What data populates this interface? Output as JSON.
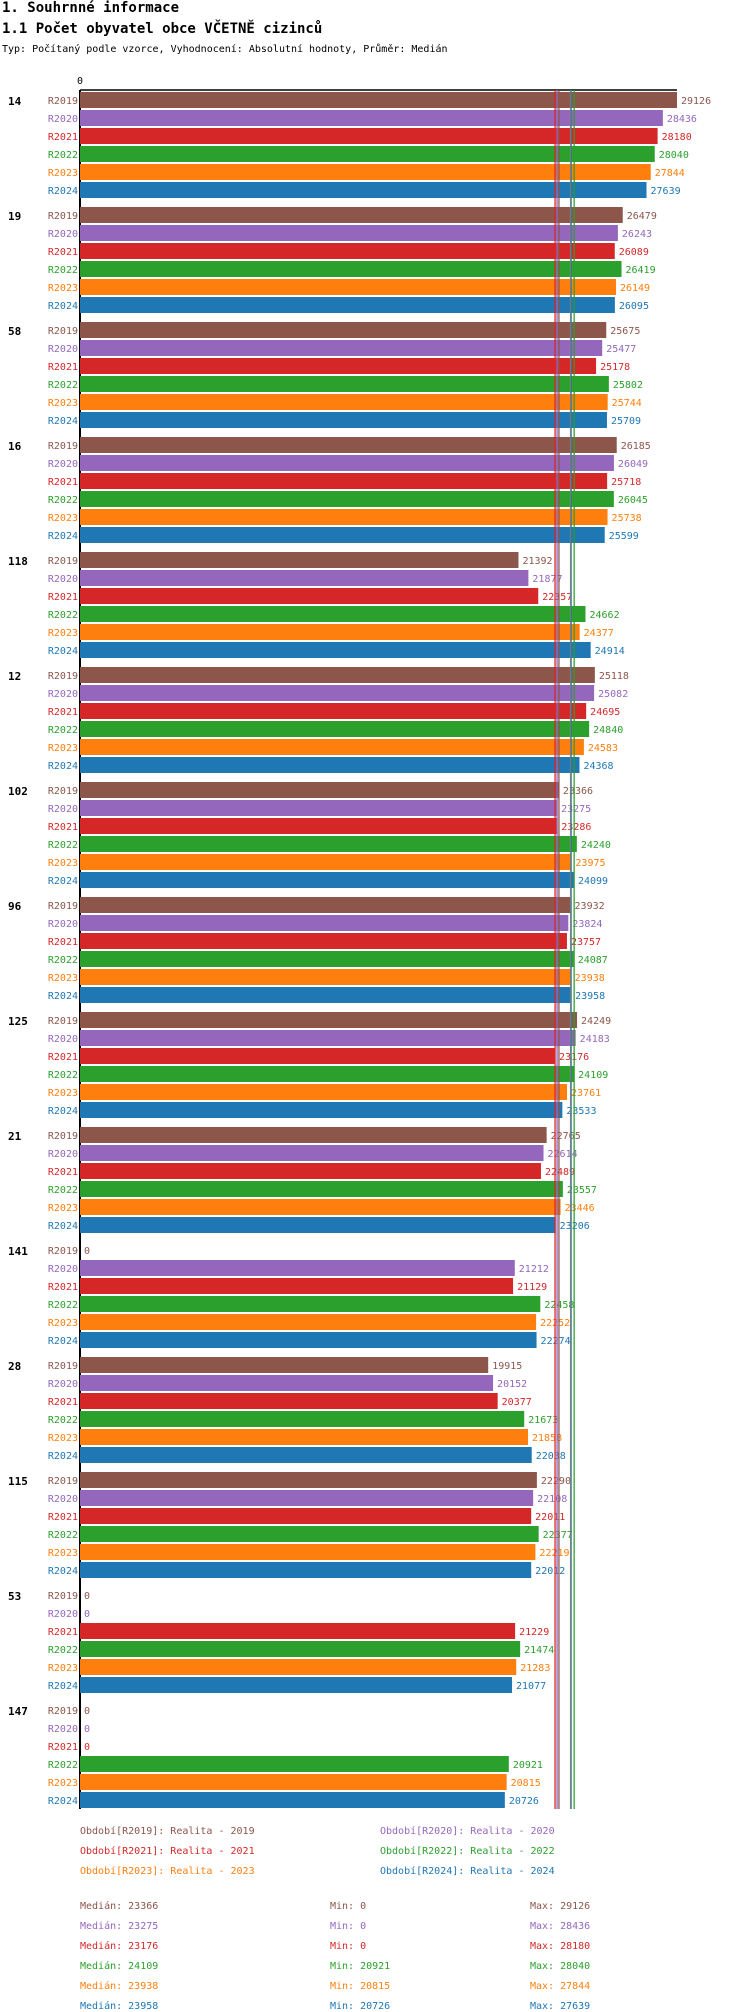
{
  "page": {
    "section_title": "1. Souhrnné informace",
    "chart_title": "1.1 Počet obyvatel obce VČETNĚ cizinců",
    "subtitle": "Typ: Počítaný podle vzorce, Vyhodnocení: Absolutní hodnoty, Průměr: Medián"
  },
  "colors": {
    "R2019": "#8c564b",
    "R2020": "#9467bd",
    "R2021": "#d62728",
    "R2022": "#2ca02c",
    "R2023": "#ff7f0e",
    "R2024": "#1f77b4"
  },
  "chart_data": {
    "type": "bar",
    "orientation": "horizontal",
    "title": "1.1 Počet obyvatel obce VČETNĚ cizinců",
    "x_axis_start_label": "0",
    "xlim": [
      0,
      29126
    ],
    "series_names": [
      "R2019",
      "R2020",
      "R2021",
      "R2022",
      "R2023",
      "R2024"
    ],
    "categories": [
      "14",
      "19",
      "58",
      "16",
      "118",
      "12",
      "102",
      "96",
      "125",
      "21",
      "141",
      "28",
      "115",
      "53",
      "147"
    ],
    "series": [
      {
        "name": "R2019",
        "values": [
          29126,
          26479,
          25675,
          26185,
          21392,
          25118,
          23366,
          23932,
          24249,
          22765,
          0,
          19915,
          22290,
          0,
          0
        ]
      },
      {
        "name": "R2020",
        "values": [
          28436,
          26243,
          25477,
          26049,
          21877,
          25082,
          23275,
          23824,
          24183,
          22614,
          21212,
          20152,
          22108,
          0,
          0
        ]
      },
      {
        "name": "R2021",
        "values": [
          28180,
          26089,
          25178,
          25718,
          22357,
          24695,
          23286,
          23757,
          23176,
          22489,
          21129,
          20377,
          22011,
          21229,
          0
        ]
      },
      {
        "name": "R2022",
        "values": [
          28040,
          26419,
          25802,
          26045,
          24662,
          24840,
          24240,
          24087,
          24109,
          23557,
          22458,
          21673,
          22377,
          21474,
          20921
        ]
      },
      {
        "name": "R2023",
        "values": [
          27844,
          26149,
          25744,
          25738,
          24377,
          24583,
          23975,
          23938,
          23761,
          23446,
          22252,
          21858,
          22219,
          21283,
          20815
        ]
      },
      {
        "name": "R2024",
        "values": [
          27639,
          26095,
          25709,
          25599,
          24914,
          24368,
          24099,
          23958,
          23533,
          23206,
          22274,
          22038,
          22012,
          21077,
          20726
        ]
      }
    ],
    "median_lines": {
      "R2019": 23366,
      "R2020": 23275,
      "R2021": 23176,
      "R2022": 24109,
      "R2023": 23938,
      "R2024": 23958
    }
  },
  "legend": [
    {
      "text": "Období[R2019]: Realita - 2019",
      "series": "R2019"
    },
    {
      "text": "Období[R2020]: Realita - 2020",
      "series": "R2020"
    },
    {
      "text": "Období[R2021]: Realita - 2021",
      "series": "R2021"
    },
    {
      "text": "Období[R2022]: Realita - 2022",
      "series": "R2022"
    },
    {
      "text": "Období[R2023]: Realita - 2023",
      "series": "R2023"
    },
    {
      "text": "Období[R2024]: Realita - 2024",
      "series": "R2024"
    }
  ],
  "stats": [
    {
      "series": "R2019",
      "median": "Medián: 23366",
      "min": "Min: 0",
      "max": "Max: 29126"
    },
    {
      "series": "R2020",
      "median": "Medián: 23275",
      "min": "Min: 0",
      "max": "Max: 28436"
    },
    {
      "series": "R2021",
      "median": "Medián: 23176",
      "min": "Min: 0",
      "max": "Max: 28180"
    },
    {
      "series": "R2022",
      "median": "Medián: 24109",
      "min": "Min: 20921",
      "max": "Max: 28040"
    },
    {
      "series": "R2023",
      "median": "Medián: 23938",
      "min": "Min: 20815",
      "max": "Max: 27844"
    },
    {
      "series": "R2024",
      "median": "Medián: 23958",
      "min": "Min: 20726",
      "max": "Max: 27639"
    }
  ]
}
